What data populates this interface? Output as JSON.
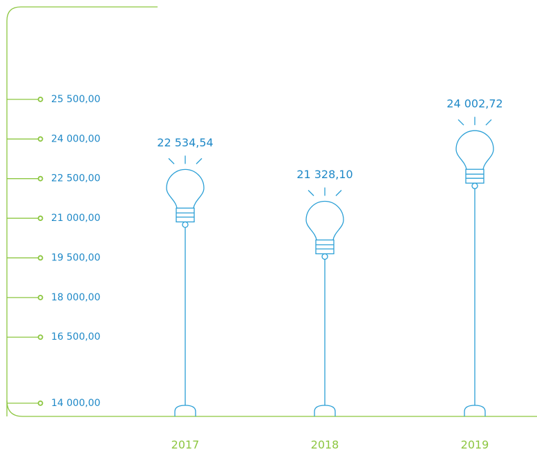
{
  "chart_data": {
    "type": "bulb",
    "categories": [
      "2017",
      "2018",
      "2019"
    ],
    "values": [
      22534.54,
      21328.1,
      24002.72
    ],
    "value_labels": [
      "22 534,54",
      "21 328,10",
      "24 002,72"
    ],
    "color": "#2a9fd6",
    "axis_color": "#8cc63f",
    "ylim": [
      13500,
      29000
    ],
    "yticks": [
      {
        "value": 25500,
        "label": "25 500,00"
      },
      {
        "value": 24000,
        "label": "24 000,00"
      },
      {
        "value": 22500,
        "label": "22 500,00"
      },
      {
        "value": 21000,
        "label": "21 000,00"
      },
      {
        "value": 19500,
        "label": "19 500,00"
      },
      {
        "value": 18000,
        "label": "18 000,00"
      },
      {
        "value": 16500,
        "label": "16 500,00"
      },
      {
        "value": 14000,
        "label": "14 000,00"
      }
    ]
  }
}
